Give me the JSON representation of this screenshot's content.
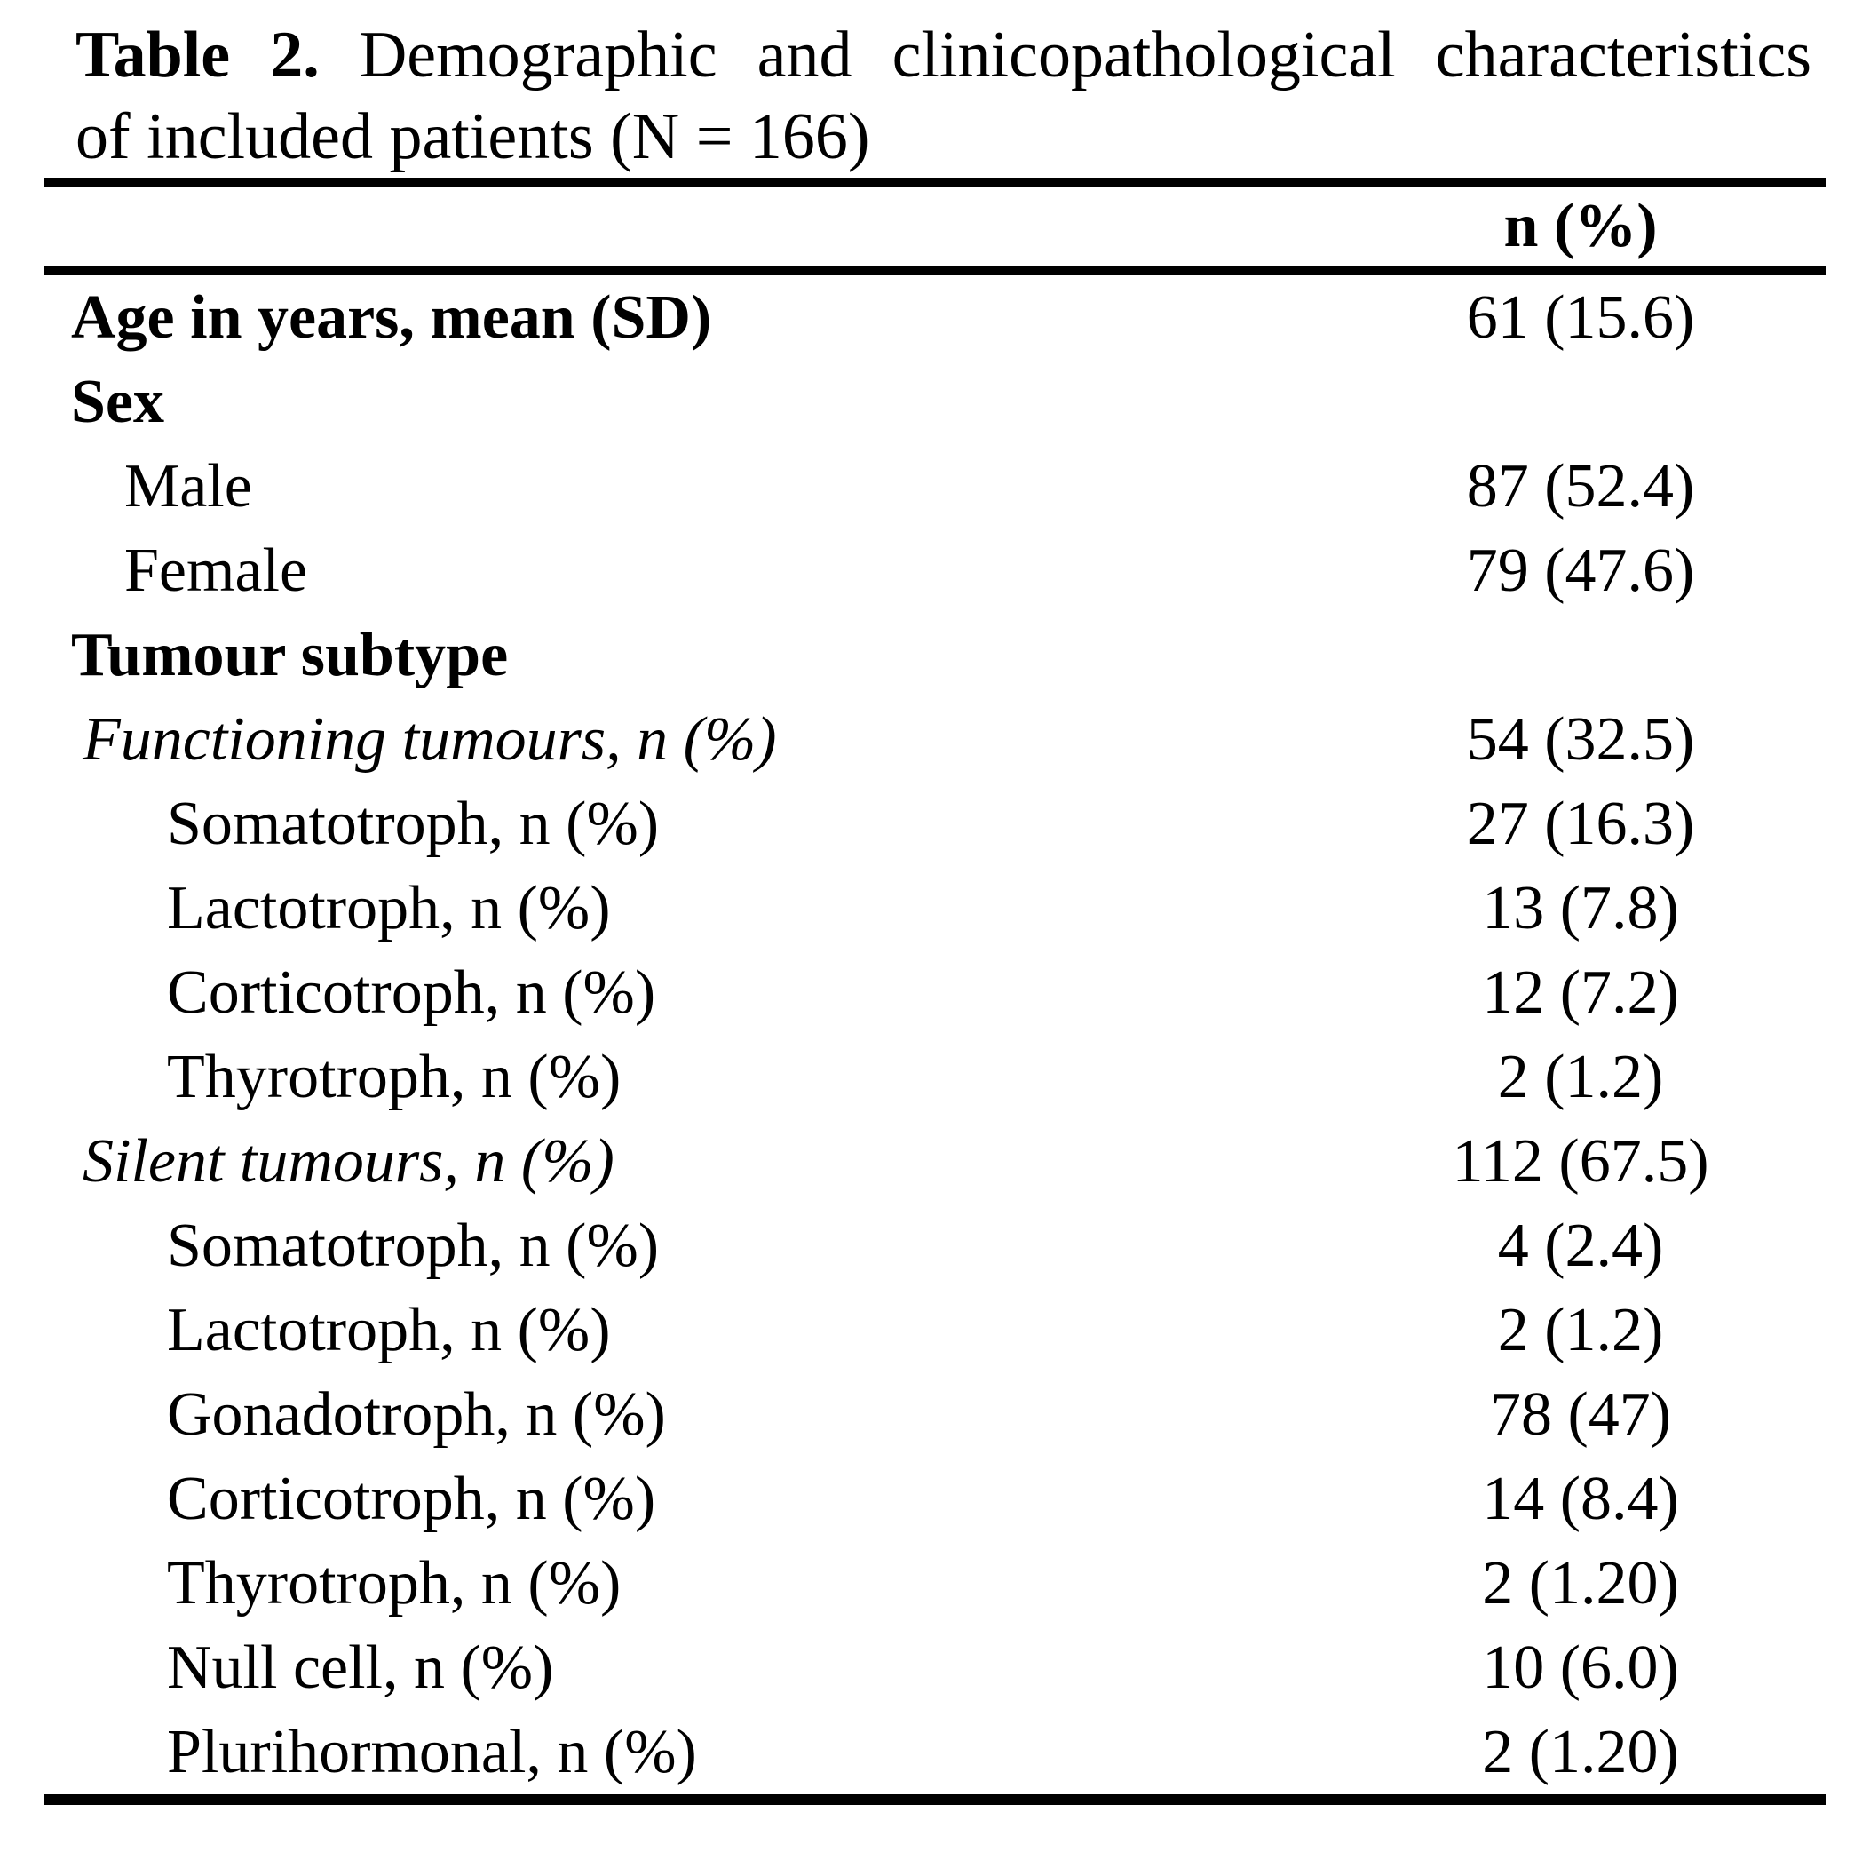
{
  "page": {
    "background_color": "#ffffff",
    "text_color": "#000000"
  },
  "title": {
    "prefix": "Table 2.",
    "line1_rest": "Demographic and clinicopathological characteristics",
    "line2": "of included patients (N = 166)"
  },
  "columns": {
    "value_header": "n (%)"
  },
  "rows": [
    {
      "label": "Age in years, mean (SD)",
      "value": "61 (15.6)",
      "style": "bold",
      "indent": "none"
    },
    {
      "label": "Sex",
      "value": "",
      "style": "bold",
      "indent": "none"
    },
    {
      "label": "Male",
      "value": "87 (52.4)",
      "style": "regular",
      "indent": "medium"
    },
    {
      "label": "Female",
      "value": "79 (47.6)",
      "style": "regular",
      "indent": "medium"
    },
    {
      "label": "Tumour subtype",
      "value": "",
      "style": "bold",
      "indent": "none"
    },
    {
      "label": "Functioning tumours, n (%)",
      "value": "54 (32.5)",
      "style": "italic",
      "indent": "small"
    },
    {
      "label": "Somatotroph, n (%)",
      "value": "27 (16.3)",
      "style": "regular",
      "indent": "large"
    },
    {
      "label": "Lactotroph, n (%)",
      "value": "13 (7.8)",
      "style": "regular",
      "indent": "large"
    },
    {
      "label": "Corticotroph, n (%)",
      "value": "12 (7.2)",
      "style": "regular",
      "indent": "large"
    },
    {
      "label": "Thyrotroph, n (%)",
      "value": "2 (1.2)",
      "style": "regular",
      "indent": "large"
    },
    {
      "label": "Silent tumours, n (%)",
      "value": "112 (67.5)",
      "style": "italic",
      "indent": "small"
    },
    {
      "label": "Somatotroph, n (%)",
      "value": "4 (2.4)",
      "style": "regular",
      "indent": "large"
    },
    {
      "label": "Lactotroph, n (%)",
      "value": "2 (1.2)",
      "style": "regular",
      "indent": "large"
    },
    {
      "label": "Gonadotroph, n (%)",
      "value": "78 (47)",
      "style": "regular",
      "indent": "large"
    },
    {
      "label": "Corticotroph, n (%)",
      "value": "14 (8.4)",
      "style": "regular",
      "indent": "large"
    },
    {
      "label": "Thyrotroph, n (%)",
      "value": "2 (1.20)",
      "style": "regular",
      "indent": "large"
    },
    {
      "label": "Null cell, n (%)",
      "value": "10 (6.0)",
      "style": "regular",
      "indent": "large"
    },
    {
      "label": "Plurihormonal, n (%)",
      "value": "2 (1.20)",
      "style": "regular",
      "indent": "large"
    }
  ]
}
